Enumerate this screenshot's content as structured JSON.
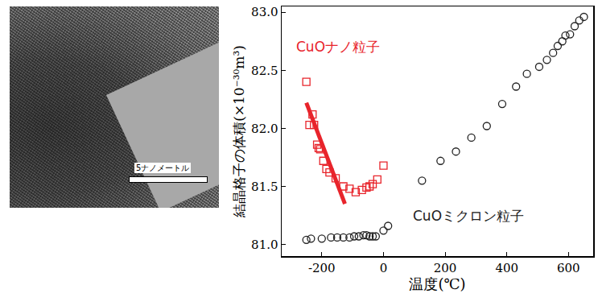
{
  "chart_data": {
    "type": "scatter",
    "x_label": "温度(℃)",
    "y_label": "結晶格子の体積(×10⁻³⁰m³)",
    "xlim": [
      -330,
      680
    ],
    "xticks": [
      -200,
      0,
      200,
      400,
      600
    ],
    "ylim": [
      80.9,
      83.05
    ],
    "yticks": [
      {
        "value": 81,
        "label": "81.0"
      },
      81.5,
      {
        "value": 82,
        "label": "82.0"
      },
      82.5,
      {
        "value": 83,
        "label": "83.0"
      }
    ],
    "grid": false,
    "series": [
      {
        "name": "CuOナノ粒子",
        "type": "scatter",
        "color": "#e8242b",
        "marker": "square-open",
        "x": [
          -250,
          -240,
          -230,
          -225,
          -215,
          -210,
          -205,
          -195,
          -185,
          -175,
          -155,
          -130,
          -110,
          -90,
          -70,
          -55,
          -45,
          -35,
          -20,
          0
        ],
        "values": [
          82.4,
          82.03,
          82.12,
          82.03,
          81.86,
          81.83,
          81.82,
          81.72,
          81.65,
          81.62,
          81.57,
          81.5,
          81.48,
          81.45,
          81.47,
          81.49,
          81.5,
          81.52,
          81.56,
          81.68
        ]
      },
      {
        "type": "line",
        "color": "#e8242b",
        "line_style": "solid",
        "x": [
          -250,
          -125
        ],
        "values": [
          82.22,
          81.35
        ]
      },
      {
        "name": "CuOミクロン粒子",
        "type": "scatter",
        "color": "#222222",
        "marker": "circle-open",
        "x": [
          -250,
          -235,
          -200,
          -170,
          -150,
          -130,
          -110,
          -95,
          -80,
          -65,
          -55,
          -45,
          -35,
          -25,
          0,
          15,
          125,
          185,
          235,
          285,
          335,
          385,
          430,
          465,
          505,
          530,
          550,
          565,
          580,
          590,
          605,
          620,
          635,
          650
        ],
        "values": [
          81.04,
          81.05,
          81.05,
          81.06,
          81.06,
          81.06,
          81.06,
          81.07,
          81.07,
          81.08,
          81.08,
          81.07,
          81.07,
          81.07,
          81.12,
          81.16,
          81.55,
          81.72,
          81.8,
          81.92,
          82.02,
          82.21,
          82.36,
          82.47,
          82.53,
          82.59,
          82.65,
          82.71,
          82.75,
          82.8,
          82.81,
          82.88,
          82.93,
          82.96
        ]
      }
    ]
  },
  "image": {
    "scale_bar_label": "5ナノメートル"
  }
}
